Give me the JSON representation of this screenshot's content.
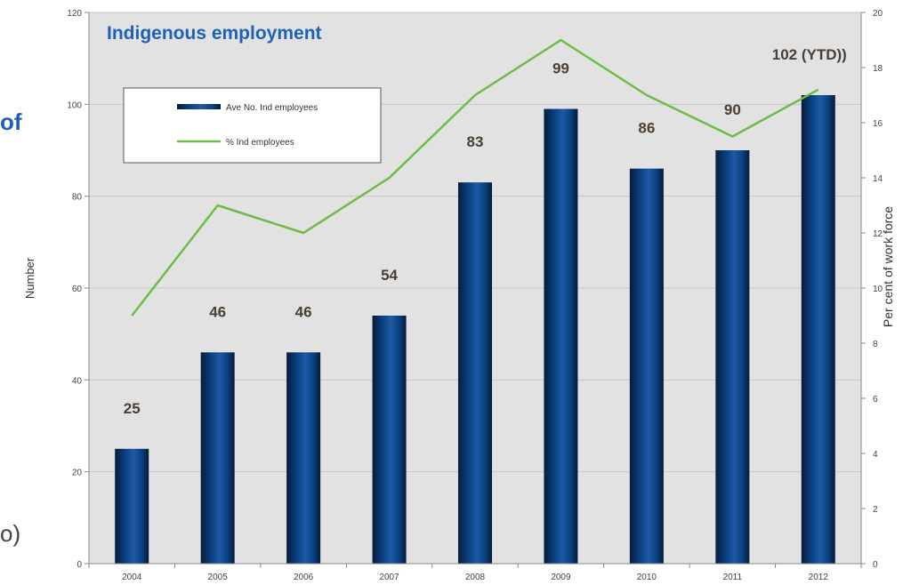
{
  "side_text": {
    "top_fragment": "of",
    "bottom_fragment": "o)"
  },
  "chart_data": {
    "type": "bar",
    "title": "Indigenous employment",
    "ylabel": "Number",
    "y2label": "Per cent of work force",
    "xlabel": "",
    "categories": [
      "2004",
      "2005",
      "2006",
      "2007",
      "2008",
      "2009",
      "2010",
      "2011",
      "2012"
    ],
    "ylim": [
      0,
      120
    ],
    "y2lim": [
      0,
      20
    ],
    "y_ticks": [
      "0",
      "20",
      "40",
      "60",
      "80",
      "100",
      "120"
    ],
    "y2_ticks": [
      "0",
      "2",
      "4",
      "6",
      "8",
      "10",
      "12",
      "14",
      "16",
      "18",
      "20"
    ],
    "grid": true,
    "legend_position": "top-left",
    "series": [
      {
        "name": "Ave No. Ind employees",
        "type": "bar",
        "axis": "left",
        "values": [
          25,
          46,
          46,
          54,
          83,
          99,
          86,
          90,
          102
        ],
        "data_labels": [
          "25",
          "46",
          "46",
          "54",
          "83",
          "99",
          "86",
          "90",
          "102 (YTD))"
        ],
        "color": "#0b3f7f"
      },
      {
        "name": "% Ind employees",
        "type": "line",
        "axis": "right",
        "values": [
          9,
          13,
          12,
          14,
          17,
          19,
          17,
          15.5,
          17.2
        ],
        "color": "#6cbd45"
      }
    ],
    "colors": {
      "plot_bg": "#e2e2e2",
      "title": "#1f62b4",
      "data_label": "#4a3f35",
      "grid": "#c7c7c7"
    }
  }
}
